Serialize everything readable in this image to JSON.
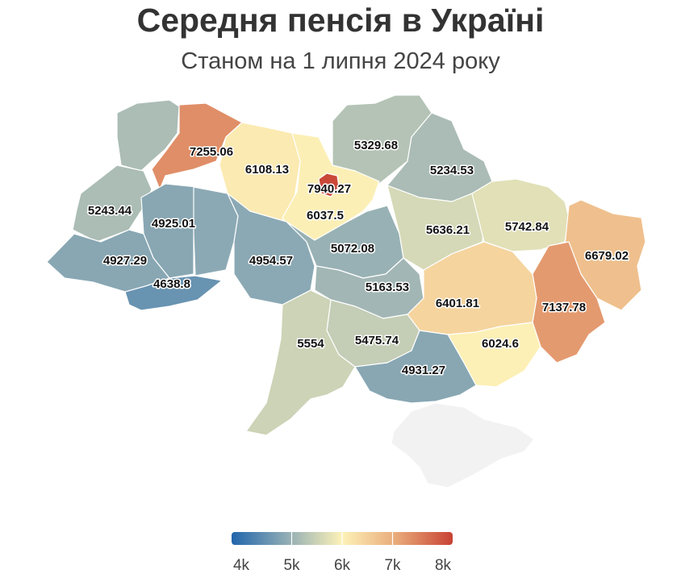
{
  "title": "Середня пенсія в Україні",
  "subtitle": "Станом на 1 липня 2024 року",
  "chart_data": {
    "type": "choropleth",
    "value_range": [
      4000,
      8000
    ],
    "colorscale": [
      "#2166ac",
      "#90acb4",
      "#fdf2b8",
      "#e8a878",
      "#c84234"
    ],
    "legend": {
      "position": "bottom",
      "ticks": [
        "4k",
        "5k",
        "6k",
        "7k",
        "8k"
      ]
    },
    "regions": [
      {
        "id": "volyn",
        "value": 5243.44
      },
      {
        "id": "rivne",
        "value": 7255.06
      },
      {
        "id": "zhytomyr",
        "value": 6108.13
      },
      {
        "id": "kyiv-oblast",
        "value": 6037.5
      },
      {
        "id": "kyiv-city",
        "value": 7940.27
      },
      {
        "id": "chernihiv",
        "value": 5329.68
      },
      {
        "id": "sumy",
        "value": 5234.53
      },
      {
        "id": "lviv",
        "value": 4925.01
      },
      {
        "id": "ternopil",
        "value": 4927.29
      },
      {
        "id": "zakarpattia",
        "value": 4638.8
      },
      {
        "id": "khmelnytskyi",
        "value": 4954.57
      },
      {
        "id": "vinnytsia",
        "value": 5072.08
      },
      {
        "id": "cherkasy",
        "value": 5163.53
      },
      {
        "id": "poltava",
        "value": 5636.21
      },
      {
        "id": "kharkiv",
        "value": 5742.84
      },
      {
        "id": "luhansk",
        "value": 6679.02
      },
      {
        "id": "donetsk",
        "value": 7137.78
      },
      {
        "id": "dnipropetrovsk",
        "value": 6401.81
      },
      {
        "id": "zaporizhzhia",
        "value": 6024.6
      },
      {
        "id": "kirovohrad",
        "value": 5475.74
      },
      {
        "id": "odesa",
        "value": 5554
      },
      {
        "id": "mykolaiv",
        "value": 4931.27
      },
      {
        "id": "khmelnytskyi-2",
        "value": null
      },
      {
        "id": "crimea",
        "value": null
      }
    ]
  }
}
